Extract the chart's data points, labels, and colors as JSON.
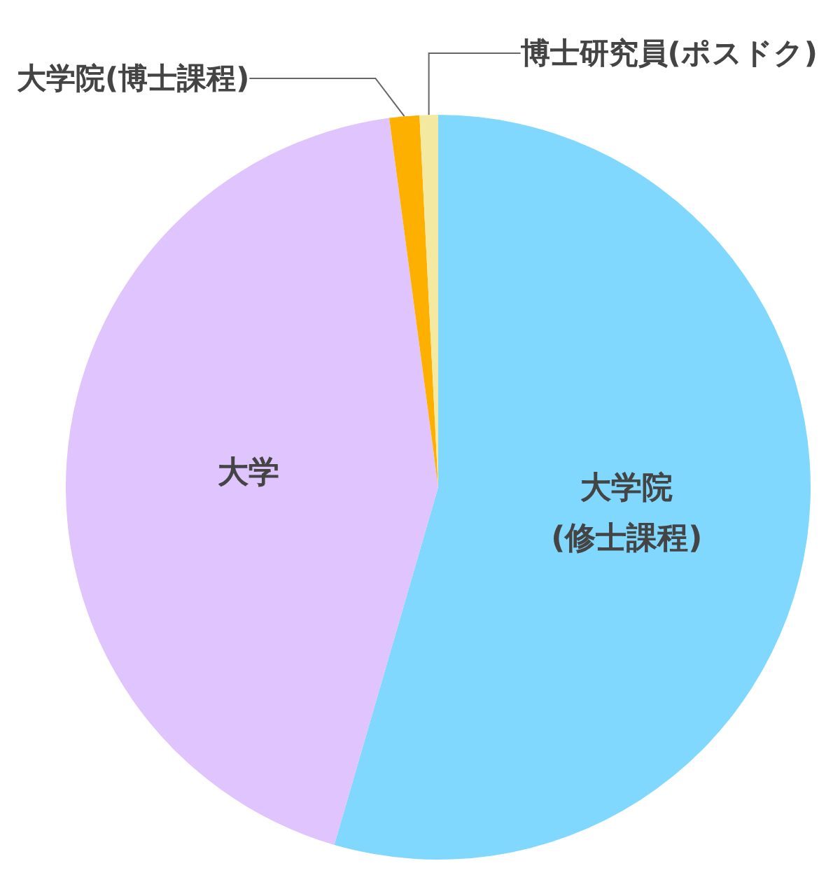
{
  "chart_data": {
    "type": "pie",
    "categories": [
      "大学院\n(修士課程)",
      "大学",
      "大学院(博士課程)",
      "博士研究員(ポスドク)"
    ],
    "values": [
      54.5,
      43.4,
      1.3,
      0.8
    ],
    "colors": [
      "#80d8fe",
      "#e0c4fd",
      "#fdb000",
      "#f4e9a0"
    ]
  }
}
